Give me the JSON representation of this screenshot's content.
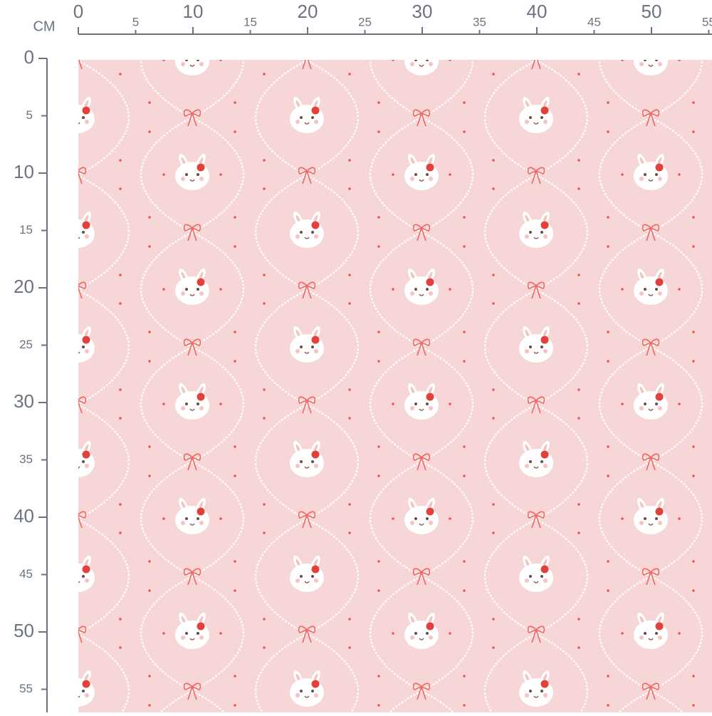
{
  "ruler": {
    "unit": "CM",
    "x_labels": [
      0,
      5,
      10,
      15,
      20,
      25,
      30,
      35,
      40,
      45,
      50,
      55
    ],
    "y_labels": [
      0,
      5,
      10,
      15,
      20,
      25,
      30,
      35,
      40,
      45,
      50,
      55
    ]
  }
}
